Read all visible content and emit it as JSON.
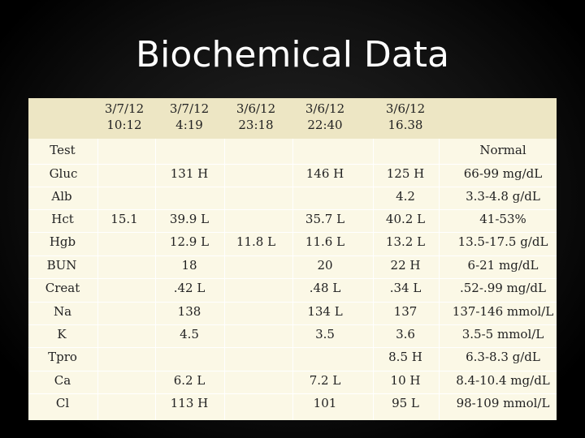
{
  "title": "Biochemical Data",
  "columns": [
    {
      "line1": "3/7/12",
      "line2": "10:12"
    },
    {
      "line1": "3/7/12",
      "line2": "4:19"
    },
    {
      "line1": "3/6/12",
      "line2": "23:18"
    },
    {
      "line1": "3/6/12",
      "line2": "22:40"
    },
    {
      "line1": "3/6/12",
      "line2": "16.38"
    }
  ],
  "rows": [
    {
      "label": "Test",
      "c1": "",
      "c2": "",
      "c3": "",
      "c4": "",
      "c5": "",
      "normal": "Normal"
    },
    {
      "label": "Gluc",
      "c1": "",
      "c2": "131 H",
      "c3": "",
      "c4": "146 H",
      "c5": "125 H",
      "normal": "66-99 mg/dL"
    },
    {
      "label": "Alb",
      "c1": "",
      "c2": "",
      "c3": "",
      "c4": "",
      "c5": "4.2",
      "normal": "3.3-4.8 g/dL"
    },
    {
      "label": "Hct",
      "c1": "15.1",
      "c2": "39.9 L",
      "c3": "",
      "c4": "35.7 L",
      "c5": "40.2 L",
      "normal": "41-53%"
    },
    {
      "label": "Hgb",
      "c1": "",
      "c2": "12.9 L",
      "c3": "11.8 L",
      "c4": "11.6 L",
      "c5": "13.2 L",
      "normal": "13.5-17.5 g/dL"
    },
    {
      "label": "BUN",
      "c1": "",
      "c2": "18",
      "c3": "",
      "c4": "20",
      "c5": "22 H",
      "normal": "6-21 mg/dL"
    },
    {
      "label": "Creat",
      "c1": "",
      "c2": ".42 L",
      "c3": "",
      "c4": ".48 L",
      "c5": ".34 L",
      "normal": ".52-.99 mg/dL"
    },
    {
      "label": "Na",
      "c1": "",
      "c2": "138",
      "c3": "",
      "c4": "134 L",
      "c5": "137",
      "normal": "137-146 mmol/L"
    },
    {
      "label": "K",
      "c1": "",
      "c2": "4.5",
      "c3": "",
      "c4": "3.5",
      "c5": "3.6",
      "normal": "3.5-5 mmol/L"
    },
    {
      "label": "Tpro",
      "c1": "",
      "c2": "",
      "c3": "",
      "c4": "",
      "c5": "8.5 H",
      "normal": "6.3-8.3 g/dL"
    },
    {
      "label": "Ca",
      "c1": "",
      "c2": "6.2 L",
      "c3": "",
      "c4": "7.2 L",
      "c5": "10 H",
      "normal": "8.4-10.4 mg/dL"
    },
    {
      "label": "Cl",
      "c1": "",
      "c2": "113 H",
      "c3": "",
      "c4": "101",
      "c5": "95 L",
      "normal": "98-109 mmol/L"
    }
  ]
}
